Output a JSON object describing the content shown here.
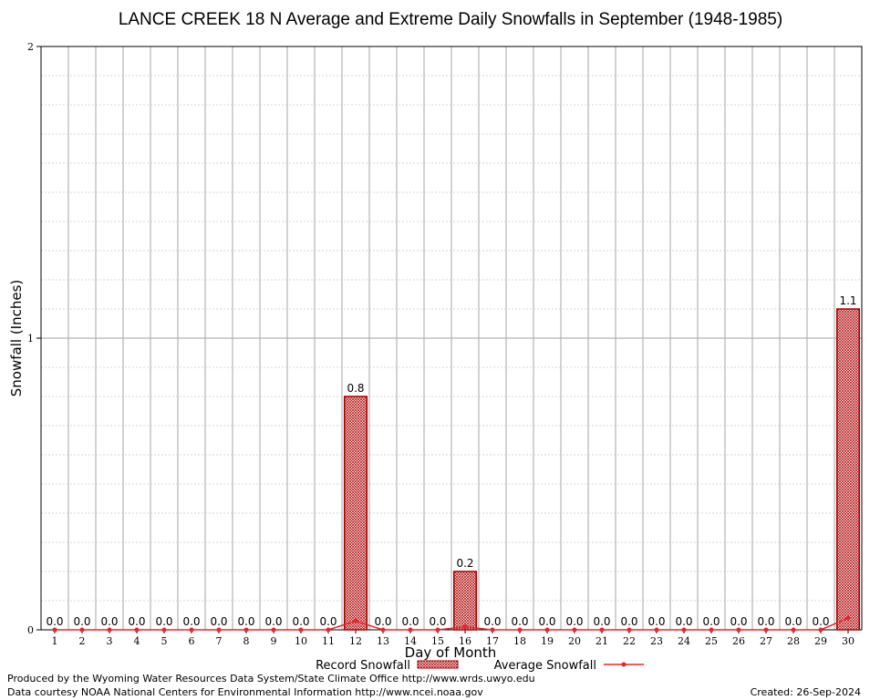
{
  "chart_data": {
    "type": "bar",
    "title": "LANCE CREEK 18 N Average and Extreme Daily Snowfalls in September (1948-1985)",
    "xlabel": "Day of Month",
    "ylabel": "Snowfall (Inches)",
    "ylim": [
      0,
      2
    ],
    "yticks": [
      0,
      1,
      2
    ],
    "grid": true,
    "categories": [
      "1",
      "2",
      "3",
      "4",
      "5",
      "6",
      "7",
      "8",
      "9",
      "10",
      "11",
      "12",
      "13",
      "14",
      "15",
      "16",
      "17",
      "18",
      "19",
      "20",
      "21",
      "22",
      "23",
      "24",
      "25",
      "26",
      "27",
      "28",
      "29",
      "30"
    ],
    "series": [
      {
        "name": "Record Snowfall",
        "kind": "bar",
        "color": "#aa0000",
        "values": [
          0,
          0,
          0,
          0,
          0,
          0,
          0,
          0,
          0,
          0,
          0,
          0.8,
          0,
          0,
          0,
          0.2,
          0,
          0,
          0,
          0,
          0,
          0,
          0,
          0,
          0,
          0,
          0,
          0,
          0,
          1.1
        ],
        "labels": [
          "0.0",
          "0.0",
          "0.0",
          "0.0",
          "0.0",
          "0.0",
          "0.0",
          "0.0",
          "0.0",
          "0.0",
          "0.0",
          "0.8",
          "0.0",
          "0.0",
          "0.0",
          "0.2",
          "0.0",
          "0.0",
          "0.0",
          "0.0",
          "0.0",
          "0.0",
          "0.0",
          "0.0",
          "0.0",
          "0.0",
          "0.0",
          "0.0",
          "0.0",
          "1.1"
        ]
      },
      {
        "name": "Average Snowfall",
        "kind": "line",
        "color": "#e8262a",
        "values": [
          0,
          0,
          0,
          0,
          0,
          0,
          0,
          0,
          0,
          0,
          0,
          0.03,
          0,
          0,
          0,
          0.01,
          0,
          0,
          0,
          0,
          0,
          0,
          0,
          0,
          0,
          0,
          0,
          0,
          0,
          0.04
        ]
      }
    ],
    "legend": "bottom-center"
  },
  "footer": {
    "produced_by": "Produced by the Wyoming Water Resources Data System/State Climate Office http://www.wrds.uwyo.edu",
    "data_courtesy": "Data courtesy NOAA National Centers for Environmental Information http://www.ncei.noaa.gov",
    "created": "Created:  26-Sep-2024"
  }
}
